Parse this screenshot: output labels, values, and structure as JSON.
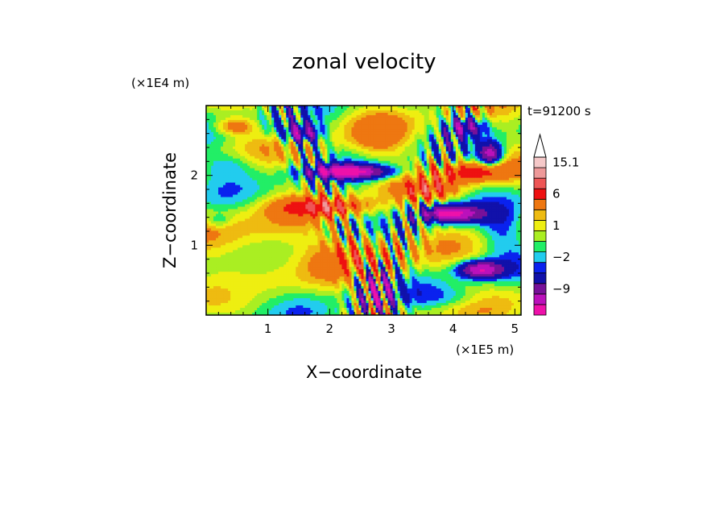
{
  "chart_data": {
    "type": "heatmap",
    "title": "zonal velocity",
    "xlabel": "X−coordinate",
    "ylabel": "Z−coordinate",
    "x_unit": "(×1E5 m)",
    "y_unit": "(×1E4 m)",
    "time_label": "t=91200 s",
    "xlim": [
      0,
      5.1
    ],
    "ylim": [
      0,
      3
    ],
    "x_ticks": [
      {
        "value": 1,
        "label": "1"
      },
      {
        "value": 2,
        "label": "2"
      },
      {
        "value": 3,
        "label": "3"
      },
      {
        "value": 4,
        "label": "4"
      },
      {
        "value": 5,
        "label": "5"
      }
    ],
    "y_ticks": [
      {
        "value": 1,
        "label": "1"
      },
      {
        "value": 2,
        "label": "2"
      }
    ],
    "colorbar": {
      "levels": [
        -15,
        -12,
        -9,
        -6,
        -3,
        -2,
        -1,
        0,
        1,
        2,
        3,
        6,
        9,
        12,
        15.1
      ],
      "colors": [
        "#ee11aa",
        "#bb11bb",
        "#771199",
        "#1111aa",
        "#0a22ee",
        "#22ccee",
        "#22ee66",
        "#aaee22",
        "#eeee11",
        "#eebb11",
        "#ee7711",
        "#ee1111",
        "#ee5555",
        "#ee9999",
        "#f5c8c8"
      ],
      "labels": [
        {
          "value": 15.1,
          "label": "15.1"
        },
        {
          "value": 6,
          "label": "6"
        },
        {
          "value": 1,
          "label": "1"
        },
        {
          "value": -2,
          "label": "−2"
        },
        {
          "value": -9,
          "label": "−9"
        }
      ]
    },
    "features": [
      {
        "x": 2.3,
        "z": 2.05,
        "sx": 0.65,
        "sz": 0.1,
        "u": -13
      },
      {
        "x": 1.9,
        "z": 1.55,
        "sx": 0.7,
        "sz": 0.13,
        "u": 7
      },
      {
        "x": 3.95,
        "z": 1.45,
        "sx": 0.5,
        "sz": 0.12,
        "u": -13
      },
      {
        "x": 4.3,
        "z": 2.05,
        "sx": 0.6,
        "sz": 0.14,
        "u": 7
      },
      {
        "x": 4.45,
        "z": 0.65,
        "sx": 0.35,
        "sz": 0.12,
        "u": -12
      },
      {
        "x": 4.6,
        "z": 2.3,
        "sx": 0.18,
        "sz": 0.16,
        "u": -11
      },
      {
        "x": 2.75,
        "z": 0.35,
        "sx": 0.3,
        "sz": 0.3,
        "u": -6
      },
      {
        "x": 1.55,
        "z": 2.6,
        "sx": 0.3,
        "sz": 0.14,
        "u": -9
      },
      {
        "x": 4.2,
        "z": 2.7,
        "sx": 0.3,
        "sz": 0.14,
        "u": -8
      },
      {
        "x": 0.9,
        "z": 1.0,
        "sx": 0.8,
        "sz": 0.45,
        "u": 2.5
      },
      {
        "x": 2.45,
        "z": 0.9,
        "sx": 0.7,
        "sz": 0.3,
        "u": 4
      },
      {
        "x": 0.5,
        "z": 0.35,
        "sx": 0.5,
        "sz": 0.25,
        "u": -1.5
      },
      {
        "x": 2.8,
        "z": 2.55,
        "sx": 0.45,
        "sz": 0.3,
        "u": 3
      },
      {
        "x": 0.35,
        "z": 2.15,
        "sx": 0.45,
        "sz": 0.18,
        "u": -2.5
      },
      {
        "x": 0.2,
        "z": 1.35,
        "sx": 0.2,
        "sz": 0.1,
        "u": -2.5
      },
      {
        "x": 4.8,
        "z": 1.2,
        "sx": 0.35,
        "sz": 0.35,
        "u": -3
      },
      {
        "x": 3.6,
        "z": 1.8,
        "sx": 0.5,
        "sz": 0.15,
        "u": 5
      },
      {
        "x": 1.0,
        "z": 2.7,
        "sx": 0.4,
        "sz": 0.15,
        "u": -2
      },
      {
        "x": 0.5,
        "z": 2.7,
        "sx": 0.35,
        "sz": 0.12,
        "u": 5
      },
      {
        "x": 3.9,
        "z": 0.25,
        "sx": 0.6,
        "sz": 0.15,
        "u": -2
      }
    ]
  }
}
